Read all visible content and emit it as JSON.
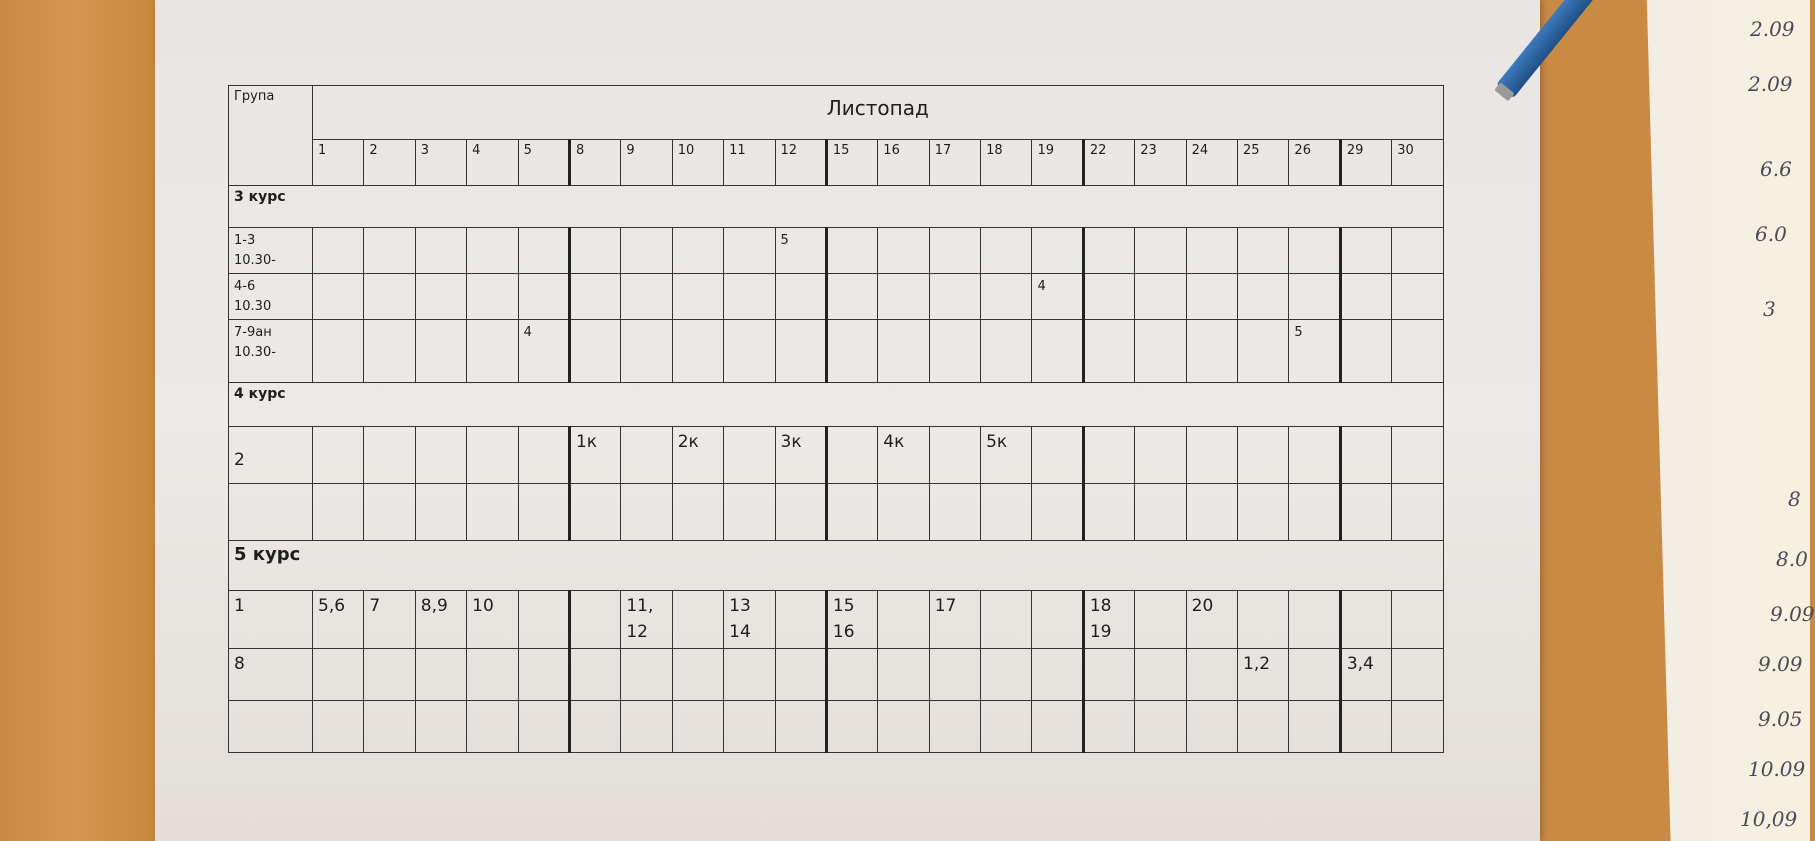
{
  "table": {
    "group_header": "Група",
    "month": "Листопад",
    "days": [
      "1",
      "2",
      "3",
      "4",
      "5",
      "8",
      "9",
      "10",
      "11",
      "12",
      "15",
      "16",
      "17",
      "18",
      "19",
      "22",
      "23",
      "24",
      "25",
      "26",
      "29",
      "30"
    ],
    "week_starts": [
      "8",
      "15",
      "22",
      "29"
    ],
    "sections": [
      {
        "title": "3 курс",
        "rows": [
          {
            "group": "1-3\n10.30-",
            "cells": {
              "12": "5"
            }
          },
          {
            "group": "4-6\n10.30",
            "cells": {
              "19": "4"
            }
          },
          {
            "group": "7-9ан\n10.30-",
            "cells": {
              "5": "4",
              "26": "5"
            }
          }
        ]
      },
      {
        "title": "4 курс",
        "rows": [
          {
            "group": "2",
            "cells": {
              "8": "1к",
              "10": "2к",
              "12": "3к",
              "16": "4к",
              "18": "5к"
            }
          },
          {
            "group": "",
            "cells": {}
          }
        ]
      },
      {
        "title": "5 курс",
        "rows": [
          {
            "group": "1",
            "cells": {
              "1": "5,6",
              "2": "7",
              "3": "8,9",
              "4": "10",
              "9": "11,\n12",
              "11": "13\n14",
              "15": "15\n16",
              "17": "17",
              "22": "18\n19",
              "24": "20"
            }
          },
          {
            "group": "8",
            "cells": {
              "25": "1,2",
              "29": "3,4"
            }
          },
          {
            "group": "",
            "cells": {}
          }
        ]
      }
    ]
  },
  "handwritten_notes": [
    "2.09",
    "2.09",
    "6.6",
    "6.0",
    "3",
    "8",
    "8.0",
    "9.09",
    "9.09",
    "9.05",
    "10.09",
    "10,09"
  ]
}
